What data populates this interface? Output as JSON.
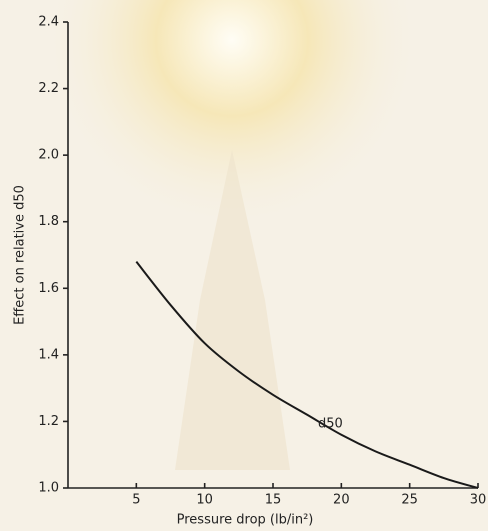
{
  "chart_data": {
    "type": "line",
    "x_label": "Pressure drop (lb/in²)",
    "y_label": "Effect on relative d50",
    "x": [
      5,
      7.5,
      10,
      12.5,
      15,
      17.5,
      20,
      22.5,
      25,
      27.5,
      30
    ],
    "series": [
      {
        "name": "d50",
        "color": "#1a1a1a",
        "values": [
          1.68,
          1.55,
          1.435,
          1.35,
          1.28,
          1.22,
          1.16,
          1.11,
          1.07,
          1.03,
          1.0
        ]
      }
    ],
    "xlim": [
      0,
      30
    ],
    "ylim": [
      1,
      2.4
    ],
    "xticks": [
      5,
      10,
      15,
      20,
      25,
      30
    ],
    "yticks": [
      {
        "value": 1,
        "label": "1.0"
      },
      1.2,
      1.4,
      1.6,
      1.8,
      {
        "value": 2,
        "label": "2.0"
      },
      2.2,
      2.4
    ]
  }
}
